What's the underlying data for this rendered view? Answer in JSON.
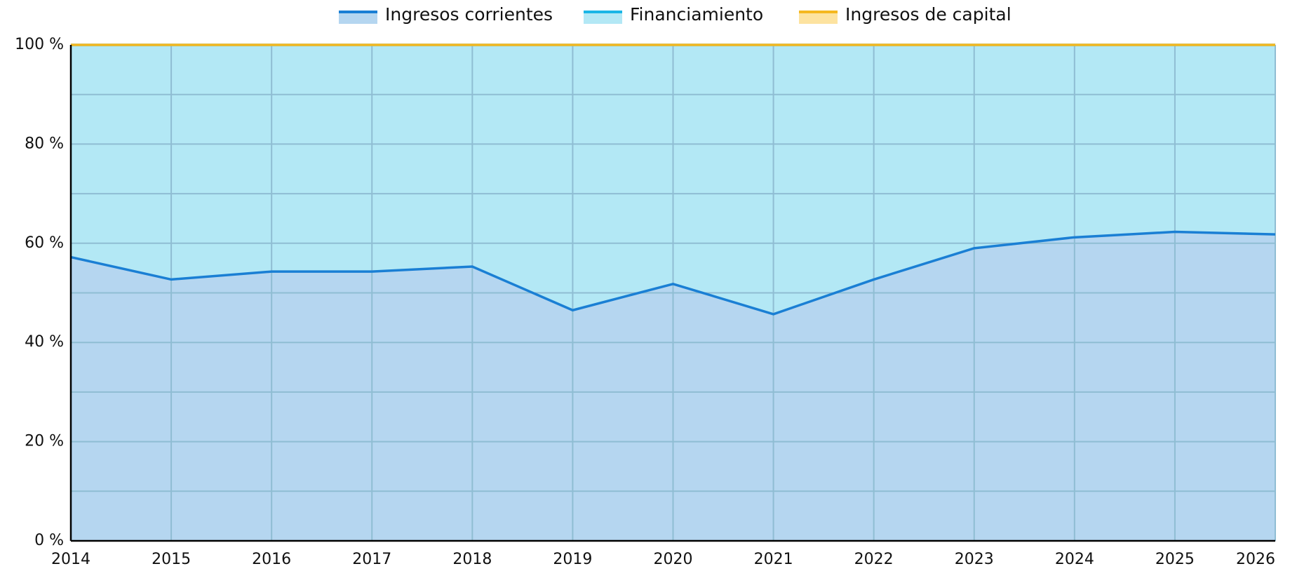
{
  "chart_data": {
    "type": "stacked_area",
    "categories": [
      "2014",
      "2015",
      "2016",
      "2017",
      "2018",
      "2019",
      "2020",
      "2021",
      "2022",
      "2023",
      "2024",
      "2025",
      "2026"
    ],
    "series": [
      {
        "name": "Ingresos corrientes",
        "color": "#1a7fd4",
        "fill": "#b5d6f0",
        "values": [
          57.2,
          52.7,
          54.3,
          54.3,
          55.3,
          46.5,
          51.8,
          45.7,
          52.7,
          59.0,
          61.2,
          62.3,
          61.8
        ]
      },
      {
        "name": "Financiamiento",
        "color": "#1ab6e6",
        "fill": "#b3e8f5",
        "values": [
          42.8,
          47.3,
          45.7,
          45.7,
          44.7,
          53.5,
          48.2,
          54.3,
          47.3,
          41.0,
          38.8,
          37.7,
          38.2
        ]
      },
      {
        "name": "Ingresos de capital",
        "color": "#f5b820",
        "fill": "#fde3a0",
        "values": [
          0,
          0,
          0,
          0,
          0,
          0,
          0,
          0,
          0,
          0,
          0,
          0,
          0
        ]
      }
    ],
    "ylim": [
      0,
      100
    ],
    "yticks": [
      {
        "value": 0,
        "label": "0 %"
      },
      {
        "value": 20,
        "label": "20 %"
      },
      {
        "value": 40,
        "label": "40 %"
      },
      {
        "value": 60,
        "label": "60 %"
      },
      {
        "value": 80,
        "label": "80 %"
      },
      {
        "value": 100,
        "label": "100 %"
      }
    ],
    "minor_yticks": [
      10,
      30,
      50,
      70,
      90
    ],
    "grid": true,
    "legend": "top"
  }
}
